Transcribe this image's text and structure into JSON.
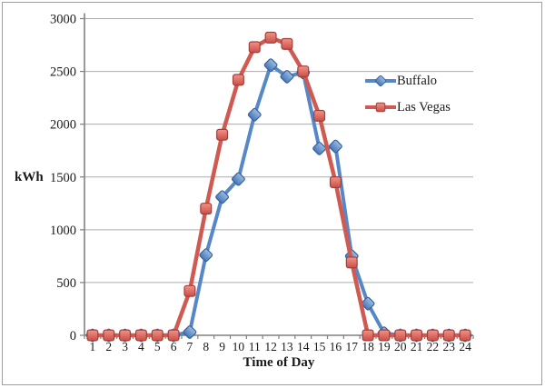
{
  "frame": {
    "background": "#FFFFFF",
    "border_color": "#9E9E9E"
  },
  "chart_data": {
    "type": "line",
    "title": "",
    "xlabel": "Time of Day",
    "ylabel": "kWh",
    "x": [
      1,
      2,
      3,
      4,
      5,
      6,
      7,
      8,
      9,
      10,
      11,
      12,
      13,
      14,
      15,
      16,
      17,
      18,
      19,
      20,
      21,
      22,
      23,
      24
    ],
    "ylim": [
      0,
      3000
    ],
    "ytick_step": 500,
    "grid": "horizontal",
    "legend_position": "inside-right",
    "axis_color": "#808080",
    "gridline_color": "#ACACAC",
    "tick_label_color": "#1a1a1a",
    "series": [
      {
        "name": "Buffalo",
        "marker": "diamond",
        "line_color": "#5688C7",
        "marker_fill_light": "#9CBCE4",
        "marker_fill_dark": "#4577B5",
        "marker_stroke": "#38619B",
        "values": [
          0,
          0,
          0,
          0,
          0,
          0,
          30,
          760,
          1310,
          1480,
          2090,
          2560,
          2450,
          2490,
          1770,
          1790,
          750,
          300,
          20,
          0,
          0,
          0,
          0,
          0
        ]
      },
      {
        "name": "Las Vegas",
        "marker": "square",
        "line_color": "#CF5A52",
        "marker_fill_light": "#F29387",
        "marker_fill_dark": "#C94F48",
        "marker_stroke": "#A13F3C",
        "values": [
          0,
          0,
          0,
          0,
          0,
          0,
          420,
          1200,
          1900,
          2420,
          2730,
          2820,
          2760,
          2500,
          2080,
          1450,
          690,
          0,
          0,
          0,
          0,
          0,
          0,
          0
        ]
      }
    ]
  }
}
